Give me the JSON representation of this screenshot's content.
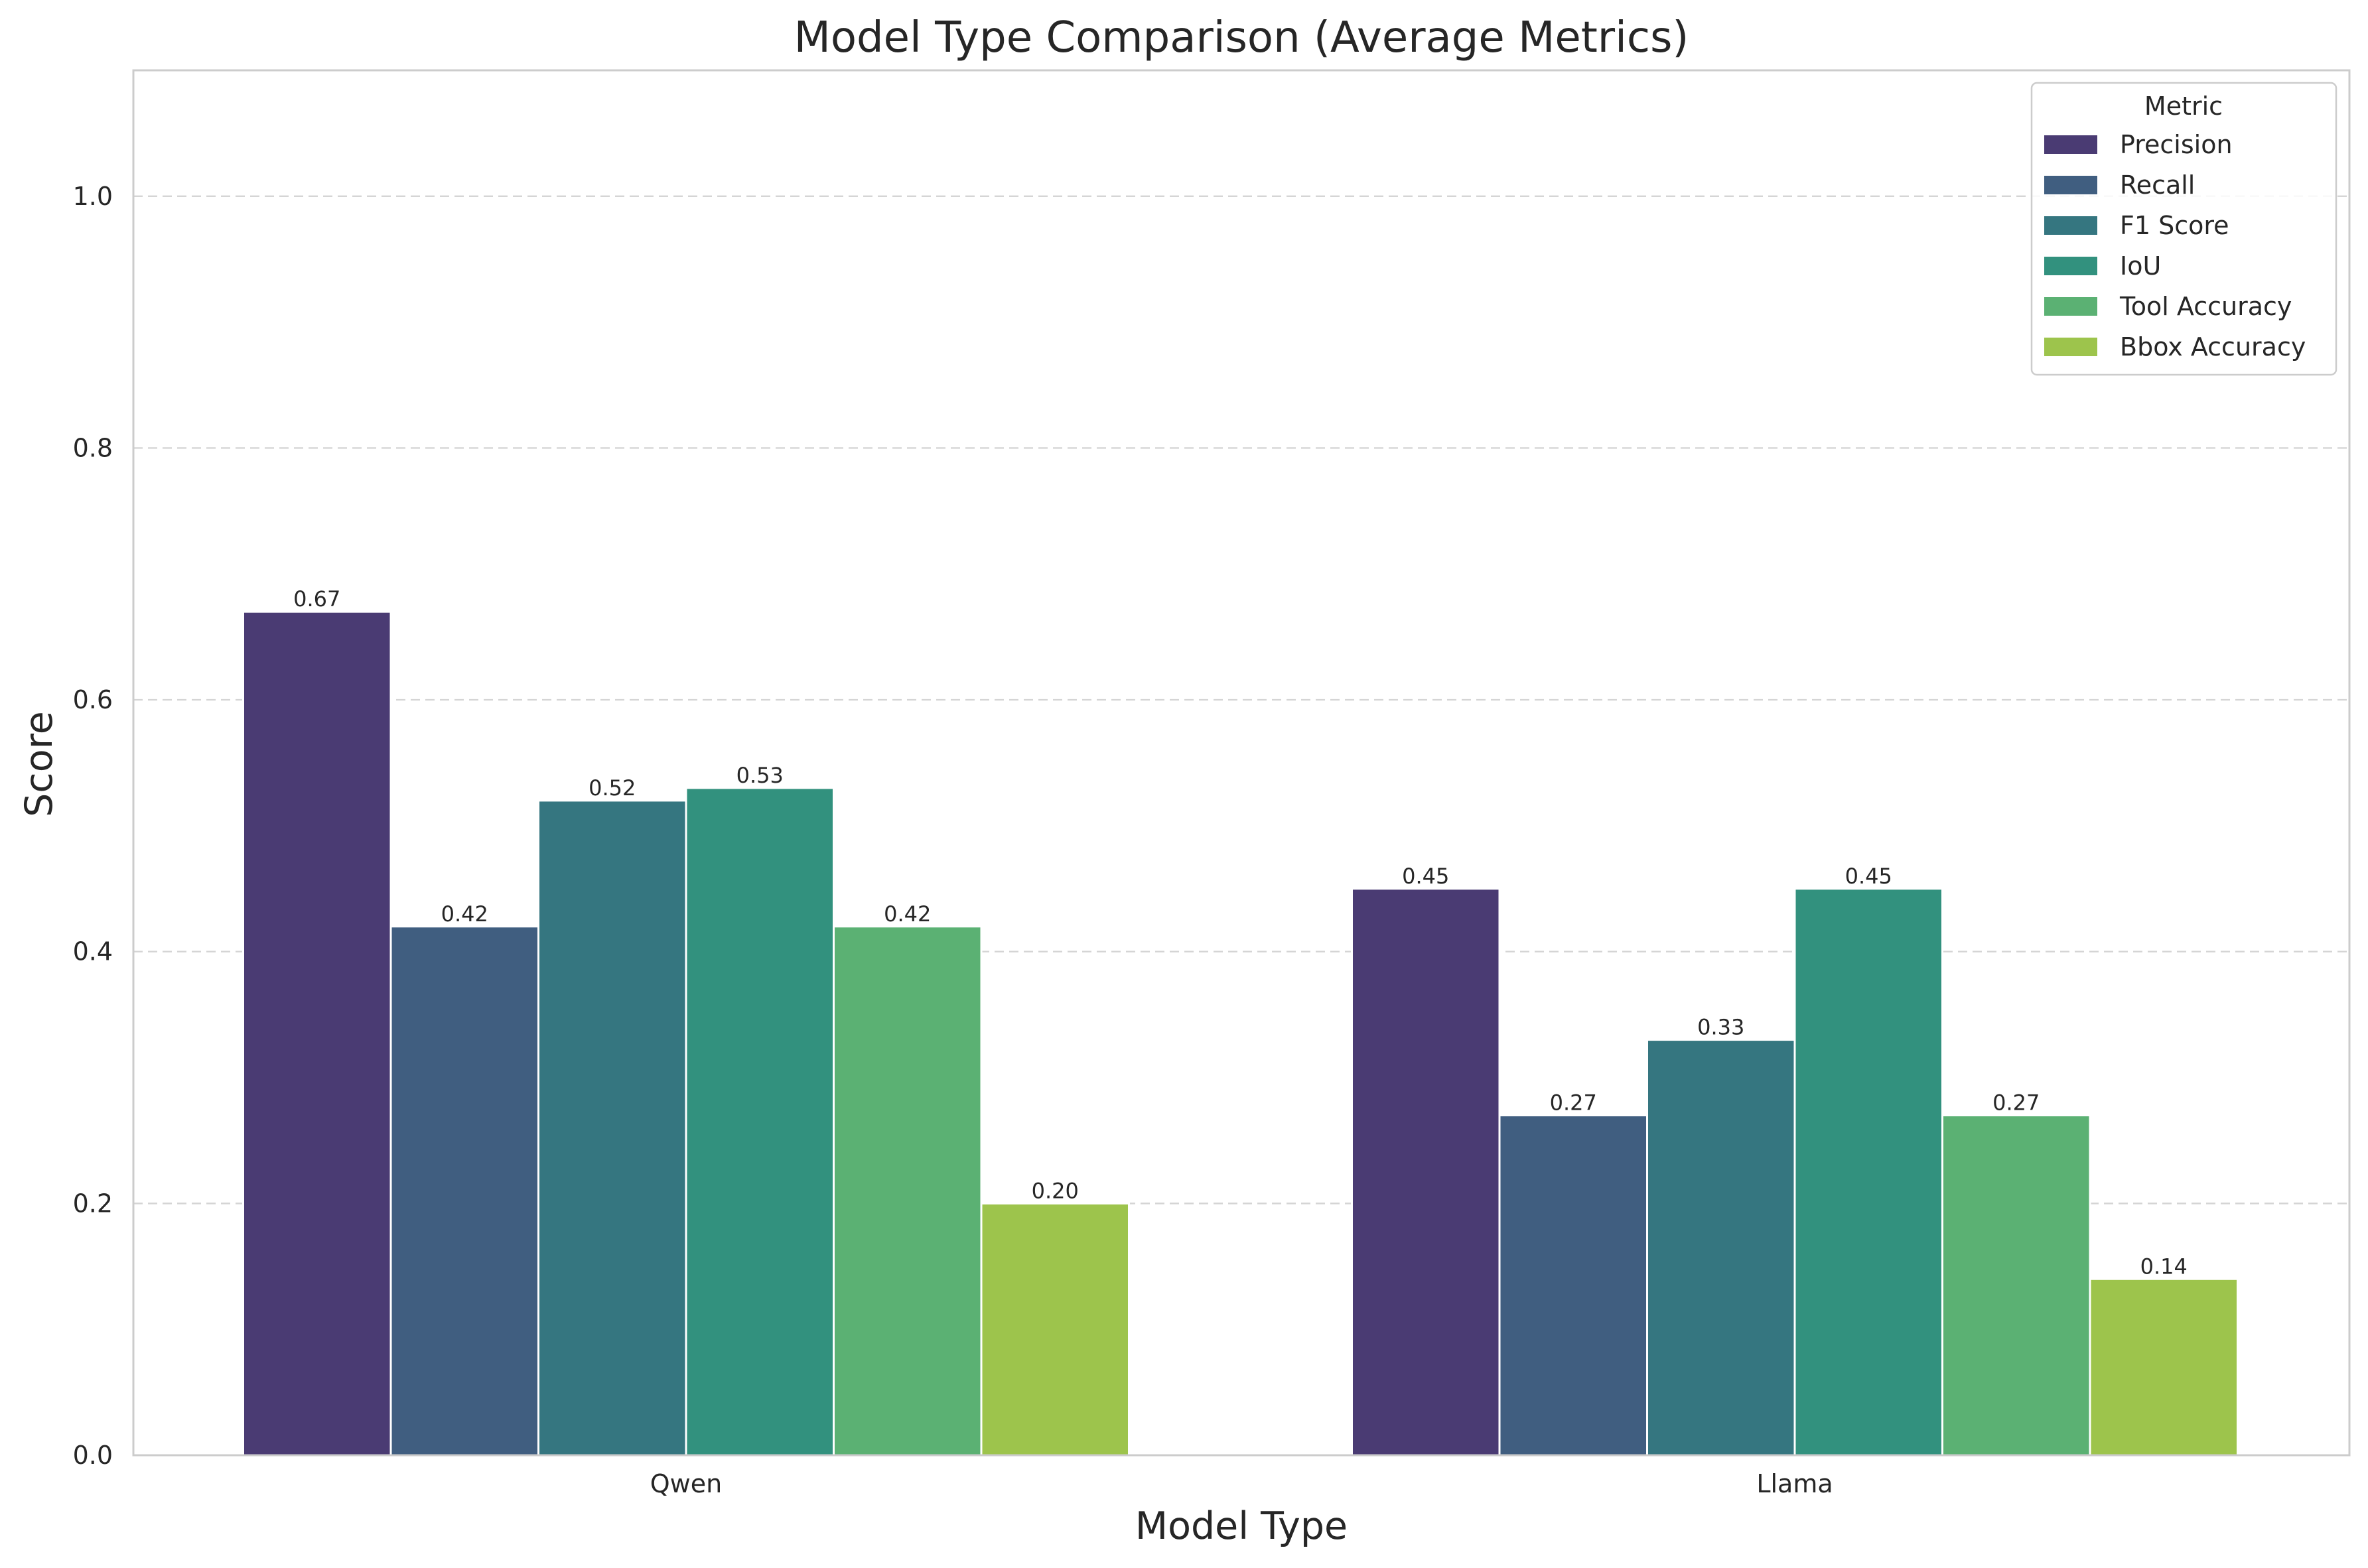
{
  "chart_data": {
    "type": "bar",
    "title": "Model Type Comparison (Average Metrics)",
    "xlabel": "Model Type",
    "ylabel": "Score",
    "ylim": [
      0,
      1.1
    ],
    "yticks": [
      0.0,
      0.2,
      0.4,
      0.6,
      0.8,
      1.0
    ],
    "ytick_labels": [
      "0.0",
      "0.2",
      "0.4",
      "0.6",
      "0.8",
      "1.0"
    ],
    "grid": true,
    "categories": [
      "Qwen",
      "Llama"
    ],
    "legend": {
      "title": "Metric",
      "placement": "top-right"
    },
    "series": [
      {
        "name": "Precision",
        "color": "#4a3b73",
        "values": [
          0.67,
          0.45
        ],
        "labels": [
          "0.67",
          "0.45"
        ]
      },
      {
        "name": "Recall",
        "color": "#405e80",
        "values": [
          0.42,
          0.27
        ],
        "labels": [
          "0.42",
          "0.27"
        ]
      },
      {
        "name": "F1 Score",
        "color": "#357680",
        "values": [
          0.52,
          0.33
        ],
        "labels": [
          "0.52",
          "0.33"
        ]
      },
      {
        "name": "IoU",
        "color": "#32917e",
        "values": [
          0.53,
          0.45
        ],
        "labels": [
          "0.53",
          "0.45"
        ]
      },
      {
        "name": "Tool Accuracy",
        "color": "#5bb173",
        "values": [
          0.42,
          0.27
        ],
        "labels": [
          "0.42",
          "0.27"
        ]
      },
      {
        "name": "Bbox Accuracy",
        "color": "#9dc44c",
        "values": [
          0.2,
          0.14
        ],
        "labels": [
          "0.20",
          "0.14"
        ]
      }
    ]
  }
}
